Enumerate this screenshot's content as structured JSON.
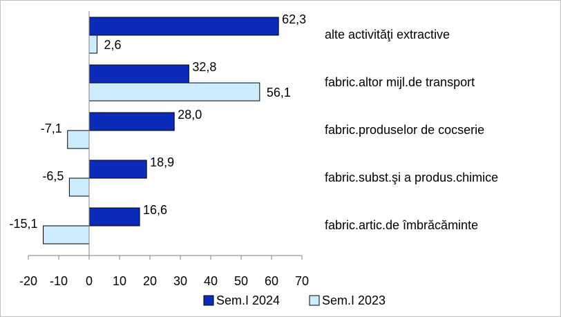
{
  "chart_data": {
    "type": "barh",
    "categories": [
      "alte activităţi extractive",
      "fabric.altor mijl.de transport",
      "fabric.produselor de cocserie",
      "fabric.subst.şi a produs.chimice",
      "fabric.artic.de îmbrăcăminte"
    ],
    "series": [
      {
        "name": "Sem.I 2024",
        "color": "#0b2bb8",
        "values": [
          62.3,
          32.8,
          28.0,
          18.9,
          16.6
        ],
        "value_labels": [
          "62,3",
          "32,8",
          "28,0",
          "18,9",
          "16,6"
        ]
      },
      {
        "name": "Sem.I 2023",
        "color": "#ccecff",
        "values": [
          2.6,
          56.1,
          -7.1,
          -6.5,
          -15.1
        ],
        "value_labels": [
          "2,6",
          "56,1",
          "-7,1",
          "-6,5",
          "-15,1"
        ]
      }
    ],
    "xlim": [
      -20,
      70
    ],
    "xticks": [
      -20,
      -10,
      0,
      10,
      20,
      30,
      40,
      50,
      60,
      70
    ],
    "legend": "bottom"
  }
}
